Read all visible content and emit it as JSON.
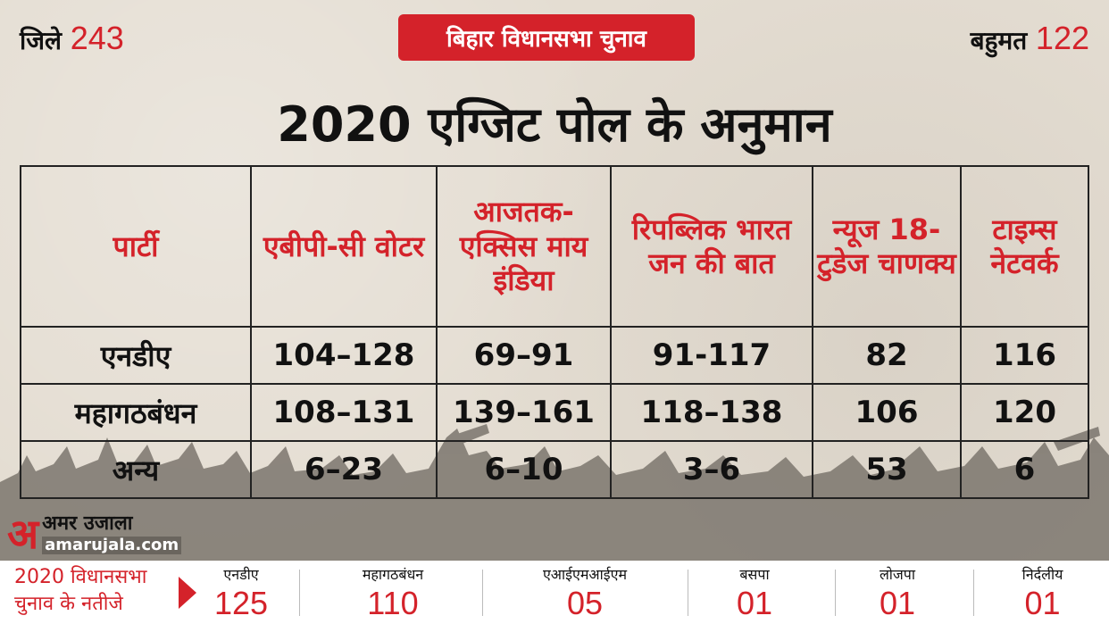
{
  "header": {
    "districts_label": "जिले",
    "districts_value": "243",
    "badge": "बिहार विधानसभा चुनाव",
    "majority_label": "बहुमत",
    "majority_value": "122",
    "title": "2020 एग्जिट पोल के अनुमान"
  },
  "table": {
    "headers": [
      "पार्टी",
      "एबीपी-सी वोटर",
      "आजतक-एक्सिस माय इंडिया",
      "रिपब्लिक भारत जन की बात",
      "न्यूज 18-टुडेज चाणक्य",
      "टाइम्स नेटवर्क"
    ],
    "rows": [
      {
        "party": "एनडीए",
        "values": [
          "104–128",
          "69–91",
          "91-117",
          "82",
          "116"
        ]
      },
      {
        "party": "महागठबंधन",
        "values": [
          "108–131",
          "139–161",
          "118–138",
          "106",
          "120"
        ]
      },
      {
        "party": "अन्य",
        "values": [
          "6–23",
          "6–10",
          "3–6",
          "53",
          "6"
        ]
      }
    ]
  },
  "logo": {
    "mark": "अ",
    "name": "अमर उजाला",
    "url": "amarujala.com"
  },
  "results": {
    "label": "2020 विधानसभा चुनाव के नतीजे",
    "items": [
      {
        "name": "एनडीए",
        "value": "125"
      },
      {
        "name": "महागठबंधन",
        "value": "110"
      },
      {
        "name": "एआईएमआईएम",
        "value": "05"
      },
      {
        "name": "बसपा",
        "value": "01"
      },
      {
        "name": "लोजपा",
        "value": "01"
      },
      {
        "name": "निर्दलीय",
        "value": "01"
      }
    ]
  },
  "colors": {
    "accent": "#d4222a",
    "text": "#111111",
    "paper": "#e4ddd2"
  }
}
